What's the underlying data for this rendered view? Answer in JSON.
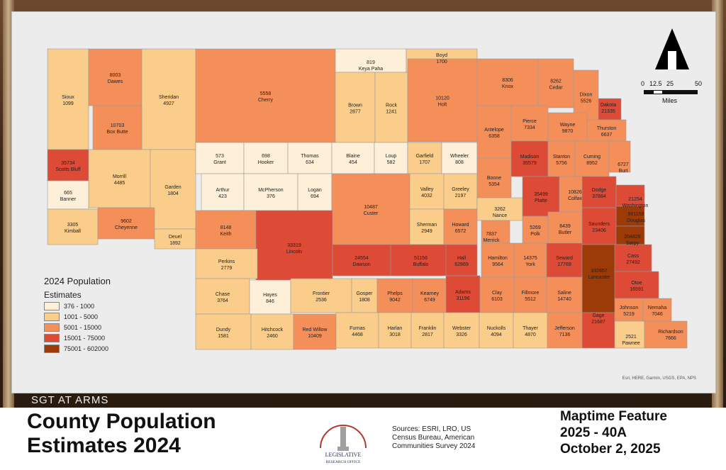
{
  "legend": {
    "title": "2024 Population",
    "subtitle": "Estimates",
    "classes": [
      {
        "label": "376 - 1000",
        "color": "#fdefd8"
      },
      {
        "label": "1001 - 5000",
        "color": "#fbcd8a"
      },
      {
        "label": "5001 - 15000",
        "color": "#f48f5a"
      },
      {
        "label": "15001 - 75000",
        "color": "#dd4a36"
      },
      {
        "label": "75001 - 602000",
        "color": "#9c3a08"
      }
    ]
  },
  "scale": {
    "ticks": [
      "0",
      "12.5",
      "25",
      "50"
    ],
    "unit": "Miles"
  },
  "attribution": "Esri, HERE, Garmin, USGS, EPA, NPS",
  "header": {
    "title": "County Population Estimates 2024",
    "sgt": "SGT AT ARMS"
  },
  "sources": "Sources: ESRI, LRO, US Census Bureau, American Communities Survey 2024",
  "logo_text": "LEGISLATIVE RESEARCH OFFICE",
  "feature": {
    "line1": "Maptime Feature",
    "line2": "2025 - 40A",
    "line3": "October 2, 2025"
  },
  "counties": [
    {
      "name": "Sioux",
      "pop": "1099",
      "cls": 1
    },
    {
      "name": "Dawes",
      "pop": "8003",
      "cls": 2
    },
    {
      "name": "Sheridan",
      "pop": "4927",
      "cls": 1
    },
    {
      "name": "Cherry",
      "pop": "5558",
      "cls": 2
    },
    {
      "name": "Keya Paha",
      "pop": "819",
      "cls": 0
    },
    {
      "name": "Boyd",
      "pop": "1700",
      "cls": 1
    },
    {
      "name": "Box Butte",
      "pop": "10703",
      "cls": 2
    },
    {
      "name": "Brown",
      "pop": "2877",
      "cls": 1
    },
    {
      "name": "Rock",
      "pop": "1241",
      "cls": 1
    },
    {
      "name": "Holt",
      "pop": "10120",
      "cls": 2
    },
    {
      "name": "Knox",
      "pop": "8306",
      "cls": 2
    },
    {
      "name": "Cedar",
      "pop": "8262",
      "cls": 2
    },
    {
      "name": "Dixon",
      "pop": "5526",
      "cls": 2
    },
    {
      "name": "Dakota",
      "pop": "21335",
      "cls": 3
    },
    {
      "name": "Scotts Bluff",
      "pop": "35734",
      "cls": 3
    },
    {
      "name": "Morrill",
      "pop": "4485",
      "cls": 1
    },
    {
      "name": "Garden",
      "pop": "1804",
      "cls": 1
    },
    {
      "name": "Grant",
      "pop": "573",
      "cls": 0
    },
    {
      "name": "Hooker",
      "pop": "698",
      "cls": 0
    },
    {
      "name": "Thomas",
      "pop": "634",
      "cls": 0
    },
    {
      "name": "Blaine",
      "pop": "454",
      "cls": 0
    },
    {
      "name": "Loup",
      "pop": "582",
      "cls": 0
    },
    {
      "name": "Garfield",
      "pop": "1707",
      "cls": 1
    },
    {
      "name": "Wheeler",
      "pop": "808",
      "cls": 0
    },
    {
      "name": "Antelope",
      "pop": "6358",
      "cls": 2
    },
    {
      "name": "Pierce",
      "pop": "7334",
      "cls": 2
    },
    {
      "name": "Wayne",
      "pop": "9870",
      "cls": 2
    },
    {
      "name": "Thurston",
      "pop": "6637",
      "cls": 2
    },
    {
      "name": "Banner",
      "pop": "665",
      "cls": 0
    },
    {
      "name": "Arthur",
      "pop": "423",
      "cls": 0
    },
    {
      "name": "McPherson",
      "pop": "376",
      "cls": 0
    },
    {
      "name": "Logan",
      "pop": "694",
      "cls": 0
    },
    {
      "name": "Custer",
      "pop": "10487",
      "cls": 2
    },
    {
      "name": "Valley",
      "pop": "4032",
      "cls": 1
    },
    {
      "name": "Greeley",
      "pop": "2197",
      "cls": 1
    },
    {
      "name": "Boone",
      "pop": "5354",
      "cls": 2
    },
    {
      "name": "Madison",
      "pop": "35579",
      "cls": 3
    },
    {
      "name": "Stanton",
      "pop": "5756",
      "cls": 2
    },
    {
      "name": "Cuming",
      "pop": "8952",
      "cls": 2
    },
    {
      "name": "Burt",
      "pop": "6727",
      "cls": 2
    },
    {
      "name": "Kimball",
      "pop": "3305",
      "cls": 1
    },
    {
      "name": "Cheyenne",
      "pop": "9602",
      "cls": 2
    },
    {
      "name": "Deuel",
      "pop": "1892",
      "cls": 1
    },
    {
      "name": "Keith",
      "pop": "8148",
      "cls": 2
    },
    {
      "name": "Lincoln",
      "pop": "33319",
      "cls": 3
    },
    {
      "name": "Sherman",
      "pop": "2949",
      "cls": 1
    },
    {
      "name": "Howard",
      "pop": "6572",
      "cls": 2
    },
    {
      "name": "Nance",
      "pop": "3262",
      "cls": 1
    },
    {
      "name": "Platte",
      "pop": "35499",
      "cls": 3
    },
    {
      "name": "Colfax",
      "pop": "10826",
      "cls": 2
    },
    {
      "name": "Dodge",
      "pop": "37884",
      "cls": 3
    },
    {
      "name": "Washington",
      "pop": "21254",
      "cls": 3
    },
    {
      "name": "Douglas",
      "pop": "601158",
      "cls": 4
    },
    {
      "name": "Merrick",
      "pop": "7837",
      "cls": 2
    },
    {
      "name": "Polk",
      "pop": "5269",
      "cls": 2
    },
    {
      "name": "Butler",
      "pop": "8439",
      "cls": 2
    },
    {
      "name": "Saunders",
      "pop": "23406",
      "cls": 3
    },
    {
      "name": "Sarpy",
      "pop": "204828",
      "cls": 4
    },
    {
      "name": "Perkins",
      "pop": "2779",
      "cls": 1
    },
    {
      "name": "Dawson",
      "pop": "24554",
      "cls": 3
    },
    {
      "name": "Buffalo",
      "pop": "51156",
      "cls": 3
    },
    {
      "name": "Hall",
      "pop": "62869",
      "cls": 3
    },
    {
      "name": "Hamilton",
      "pop": "9564",
      "cls": 2
    },
    {
      "name": "York",
      "pop": "14375",
      "cls": 2
    },
    {
      "name": "Seward",
      "pop": "17769",
      "cls": 3
    },
    {
      "name": "Lancaster",
      "pop": "332857",
      "cls": 4
    },
    {
      "name": "Cass",
      "pop": "27492",
      "cls": 3
    },
    {
      "name": "Otoe",
      "pop": "16591",
      "cls": 3
    },
    {
      "name": "Chase",
      "pop": "3764",
      "cls": 1
    },
    {
      "name": "Hayes",
      "pop": "846",
      "cls": 0
    },
    {
      "name": "Frontier",
      "pop": "2536",
      "cls": 1
    },
    {
      "name": "Gosper",
      "pop": "1808",
      "cls": 1
    },
    {
      "name": "Phelps",
      "pop": "9042",
      "cls": 2
    },
    {
      "name": "Kearney",
      "pop": "6749",
      "cls": 2
    },
    {
      "name": "Adams",
      "pop": "31196",
      "cls": 3
    },
    {
      "name": "Clay",
      "pop": "6103",
      "cls": 2
    },
    {
      "name": "Fillmore",
      "pop": "5512",
      "cls": 2
    },
    {
      "name": "Saline",
      "pop": "14740",
      "cls": 2
    },
    {
      "name": "Gage",
      "pop": "21687",
      "cls": 3
    },
    {
      "name": "Johnson",
      "pop": "5219",
      "cls": 2
    },
    {
      "name": "Nemaha",
      "pop": "7046",
      "cls": 2
    },
    {
      "name": "Dundy",
      "pop": "1581",
      "cls": 1
    },
    {
      "name": "Hitchcock",
      "pop": "2460",
      "cls": 1
    },
    {
      "name": "Red Willow",
      "pop": "10409",
      "cls": 2
    },
    {
      "name": "Furnas",
      "pop": "4468",
      "cls": 1
    },
    {
      "name": "Harlan",
      "pop": "3018",
      "cls": 1
    },
    {
      "name": "Franklin",
      "pop": "2817",
      "cls": 1
    },
    {
      "name": "Webster",
      "pop": "3326",
      "cls": 1
    },
    {
      "name": "Nuckolls",
      "pop": "4094",
      "cls": 1
    },
    {
      "name": "Thayer",
      "pop": "4870",
      "cls": 1
    },
    {
      "name": "Jefferson",
      "pop": "7136",
      "cls": 2
    },
    {
      "name": "Pawnee",
      "pop": "2521",
      "cls": 1
    },
    {
      "name": "Richardson",
      "pop": "7666",
      "cls": 2
    }
  ]
}
